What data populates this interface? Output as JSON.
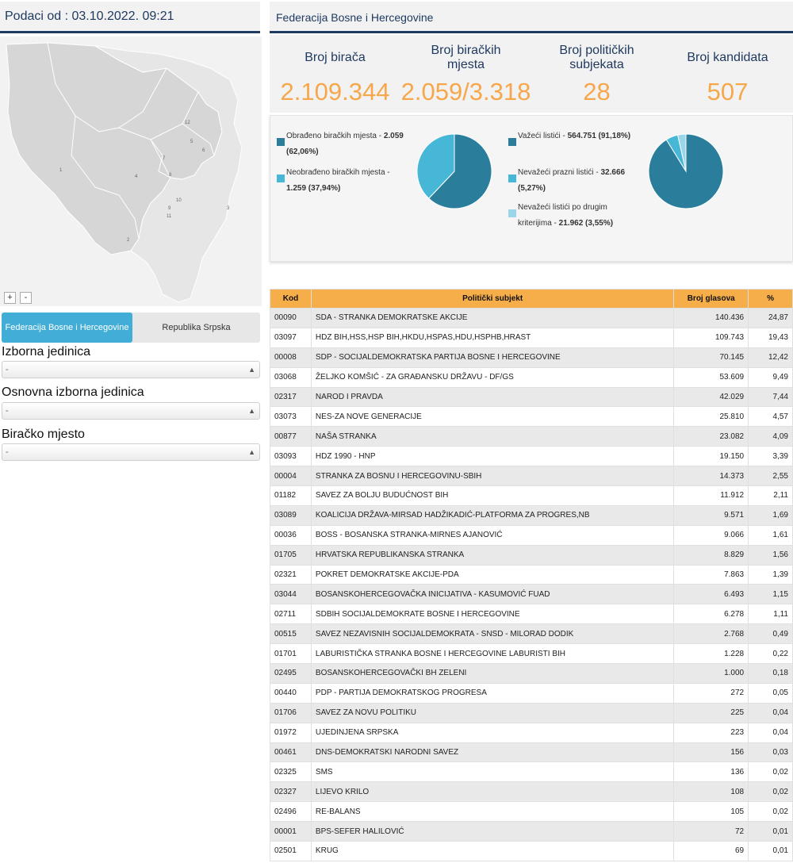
{
  "header": {
    "timestamp": "Podaci od : 03.10.2022. 09:21",
    "federation_title": "Federacija Bosne i Hercegovine"
  },
  "map": {
    "zoom_in": "+",
    "zoom_out": "-",
    "unit_labels": [
      "1",
      "2",
      "3",
      "4",
      "5",
      "6",
      "7",
      "8",
      "9",
      "10",
      "11",
      "12"
    ]
  },
  "entity_tabs": {
    "federation": "Federacija Bosne i Hercegovine",
    "republika": "Republika Srpska"
  },
  "filters": {
    "izborna_label": "Izborna jedinica",
    "izborna_value": "-",
    "osnovna_label": "Osnovna izborna jedinica",
    "osnovna_value": "-",
    "biracko_label": "Biračko mjesto",
    "biracko_value": "-"
  },
  "stats": {
    "birača_label": "Broj birača",
    "birača_value": "2.109.344",
    "mjesta_label": "Broj biračkih mjesta",
    "mjesta_value": "2.059/3.318",
    "subjekata_label": "Broj političkih subjekata",
    "subjekata_value": "28",
    "kandidata_label": "Broj kandidata",
    "kandidata_value": "507"
  },
  "colors": {
    "dark_teal": "#2a7e9c",
    "light_blue": "#46b7d7",
    "pale_blue": "#9ad5ea",
    "orange": "#f6a74c",
    "navy": "#1f3a60"
  },
  "chart_data": [
    {
      "type": "pie",
      "slices": [
        {
          "label": "Obrađeno biračkih mjesta",
          "value_text": "2.059 (62,06%)",
          "value": 62.06,
          "color": "#2a7e9c"
        },
        {
          "label": "Neobrađeno biračkih mjesta",
          "value_text": "1.259 (37,94%)",
          "value": 37.94,
          "color": "#46b7d7"
        }
      ]
    },
    {
      "type": "pie",
      "slices": [
        {
          "label": "Važeći listići",
          "value_text": "564.751 (91,18%)",
          "value": 91.18,
          "color": "#2a7e9c"
        },
        {
          "label": "Nevažeći prazni listići",
          "value_text": "32.666 (5,27%)",
          "value": 5.27,
          "color": "#46b7d7"
        },
        {
          "label": "Nevažeći listići po drugim kriterijima",
          "value_text": "21.962 (3,55%)",
          "value": 3.55,
          "color": "#9ad5ea"
        }
      ]
    }
  ],
  "table": {
    "headers": [
      "Kod",
      "Politički subjekt",
      "Broj glasova",
      "%"
    ],
    "rows": [
      [
        "00090",
        "SDA - STRANKA DEMOKRATSKE AKCIJE",
        "140.436",
        "24,87"
      ],
      [
        "03097",
        "HDZ BIH,HSS,HSP BIH,HKDU,HSPAS,HDU,HSPHB,HRAST",
        "109.743",
        "19,43"
      ],
      [
        "00008",
        "SDP - SOCIJALDEMOKRATSKA PARTIJA BOSNE I HERCEGOVINE",
        "70.145",
        "12,42"
      ],
      [
        "03068",
        "ŽELJKO KOMŠIĆ - ZA GRAĐANSKU DRŽAVU - DF/GS",
        "53.609",
        "9,49"
      ],
      [
        "02317",
        "NAROD I PRAVDA",
        "42.029",
        "7,44"
      ],
      [
        "03073",
        "NES-ZA NOVE GENERACIJE",
        "25.810",
        "4,57"
      ],
      [
        "00877",
        "NAŠA STRANKA",
        "23.082",
        "4,09"
      ],
      [
        "03093",
        "HDZ 1990 - HNP",
        "19.150",
        "3,39"
      ],
      [
        "00004",
        "STRANKA ZA BOSNU I HERCEGOVINU-SBIH",
        "14.373",
        "2,55"
      ],
      [
        "01182",
        "SAVEZ ZA BOLJU BUDUĆNOST BIH",
        "11.912",
        "2,11"
      ],
      [
        "03089",
        "KOALICIJA DRŽAVA-MIRSAD HADŽIKADIĆ-PLATFORMA ZA PROGRES,NB",
        "9.571",
        "1,69"
      ],
      [
        "00036",
        "BOSS - BOSANSKA STRANKA-MIRNES AJANOVIĆ",
        "9.066",
        "1,61"
      ],
      [
        "01705",
        "HRVATSKA REPUBLIKANSKA STRANKA",
        "8.829",
        "1,56"
      ],
      [
        "02321",
        "POKRET DEMOKRATSKE AKCIJE-PDA",
        "7.863",
        "1,39"
      ],
      [
        "03044",
        "BOSANSKOHERCEGOVAČKA INICIJATIVA - KASUMOVIĆ FUAD",
        "6.493",
        "1,15"
      ],
      [
        "02711",
        "SDBIH SOCIJALDEMOKRATE BOSNE I HERCEGOVINE",
        "6.278",
        "1,11"
      ],
      [
        "00515",
        "SAVEZ NEZAVISNIH SOCIJALDEMOKRATA - SNSD - MILORAD DODIK",
        "2.768",
        "0,49"
      ],
      [
        "01701",
        "LABURISTIČKA STRANKA BOSNE I HERCEGOVINE LABURISTI BIH",
        "1.228",
        "0,22"
      ],
      [
        "02495",
        "BOSANSKOHERCEGOVAČKI BH ZELENI",
        "1.000",
        "0,18"
      ],
      [
        "00440",
        "PDP - PARTIJA DEMOKRATSKOG PROGRESA",
        "272",
        "0,05"
      ],
      [
        "01706",
        "SAVEZ ZA NOVU POLITIKU",
        "225",
        "0,04"
      ],
      [
        "01972",
        "UJEDINJENA SRPSKA",
        "223",
        "0,04"
      ],
      [
        "00461",
        "DNS-DEMOKRATSKI NARODNI SAVEZ",
        "156",
        "0,03"
      ],
      [
        "02325",
        "SMS",
        "136",
        "0,02"
      ],
      [
        "02327",
        "LIJEVO KRILO",
        "108",
        "0,02"
      ],
      [
        "02496",
        "RE-BALANS",
        "105",
        "0,02"
      ],
      [
        "00001",
        "BPS-SEFER HALILOVIĆ",
        "72",
        "0,01"
      ],
      [
        "02501",
        "KRUG",
        "69",
        "0,01"
      ]
    ]
  }
}
